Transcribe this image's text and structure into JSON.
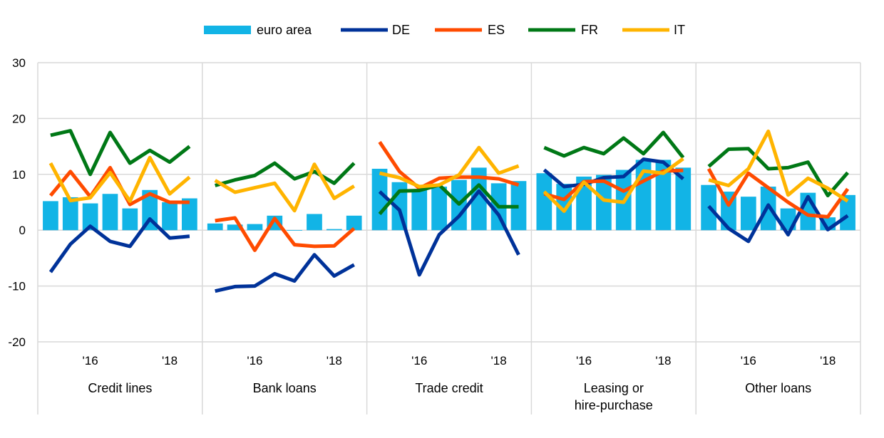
{
  "chart_data": {
    "type": "bar+line",
    "title": "",
    "xlabel": "",
    "ylabel": "",
    "ylim": [
      -20,
      30
    ],
    "yticks": [
      30,
      20,
      10,
      0,
      -10,
      -20
    ],
    "grid": true,
    "legend_position": "top-center",
    "legend": [
      {
        "name": "euro area",
        "kind": "bar",
        "color": "#12B4E6"
      },
      {
        "name": "DE",
        "kind": "line",
        "color": "#003299"
      },
      {
        "name": "ES",
        "kind": "line",
        "color": "#FF4B00"
      },
      {
        "name": "FR",
        "kind": "line",
        "color": "#007816"
      },
      {
        "name": "IT",
        "kind": "line",
        "color": "#FFB400"
      }
    ],
    "x_tick_labels": [
      "'16",
      "'18"
    ],
    "panels": [
      {
        "label": [
          "Credit lines"
        ],
        "euro_area": [
          5.2,
          5.9,
          4.8,
          6.5,
          3.9,
          7.2,
          5.0,
          5.7
        ],
        "DE": [
          -7.5,
          -2.5,
          0.7,
          -2.0,
          -2.9,
          2.0,
          -1.4,
          -1.1
        ],
        "ES": [
          6.2,
          10.5,
          6.0,
          11.2,
          4.6,
          6.5,
          5.0,
          5.0
        ],
        "FR": [
          17.0,
          17.8,
          10.0,
          17.5,
          12.0,
          14.3,
          12.2,
          15.0
        ],
        "IT": [
          12.0,
          5.3,
          5.8,
          10.3,
          5.2,
          13.0,
          6.5,
          9.5
        ]
      },
      {
        "label": [
          "Bank loans"
        ],
        "euro_area": [
          1.2,
          1.0,
          1.1,
          2.6,
          0.0,
          2.9,
          0.2,
          2.6
        ],
        "DE": [
          -10.9,
          -10.1,
          -10.0,
          -7.8,
          -9.1,
          -4.4,
          -8.2,
          -6.2
        ],
        "ES": [
          1.7,
          2.2,
          -3.6,
          2.1,
          -2.6,
          -2.9,
          -2.8,
          0.3
        ],
        "FR": [
          8.0,
          9.0,
          9.8,
          12.0,
          9.2,
          10.5,
          8.4,
          12.0
        ],
        "IT": [
          8.9,
          6.8,
          7.6,
          8.4,
          3.5,
          11.8,
          5.7,
          7.9
        ]
      },
      {
        "label": [
          "Trade credit"
        ],
        "euro_area": [
          11.0,
          8.6,
          7.3,
          7.8,
          9.0,
          11.2,
          8.4,
          8.8
        ],
        "DE": [
          6.9,
          3.6,
          -8.0,
          -0.8,
          2.5,
          7.0,
          2.7,
          -4.4
        ],
        "ES": [
          15.8,
          10.5,
          7.5,
          9.3,
          9.5,
          9.5,
          9.2,
          8.1
        ],
        "FR": [
          2.9,
          7.0,
          7.1,
          8.1,
          4.7,
          8.1,
          4.2,
          4.2
        ],
        "IT": [
          10.2,
          9.4,
          7.8,
          8.1,
          9.9,
          14.8,
          10.2,
          11.5
        ]
      },
      {
        "label": [
          "Leasing or",
          "hire-purchase"
        ],
        "euro_area": [
          10.2,
          8.3,
          9.6,
          9.9,
          10.8,
          12.6,
          12.6,
          11.2
        ],
        "DE": [
          10.8,
          7.8,
          8.2,
          9.4,
          9.6,
          12.7,
          12.2,
          9.2
        ],
        "ES": [
          6.5,
          5.5,
          8.7,
          8.8,
          7.0,
          8.8,
          10.6,
          10.7
        ],
        "FR": [
          14.8,
          13.3,
          14.8,
          13.7,
          16.5,
          13.7,
          17.5,
          13.0
        ],
        "IT": [
          6.9,
          3.4,
          8.6,
          5.4,
          5.0,
          10.6,
          10.2,
          12.8
        ]
      },
      {
        "label": [
          "Other loans"
        ],
        "euro_area": [
          8.1,
          6.9,
          6.0,
          7.8,
          3.9,
          6.7,
          2.3,
          6.3
        ],
        "DE": [
          4.3,
          0.3,
          -2.0,
          4.5,
          -0.8,
          6.0,
          0.1,
          2.6
        ],
        "ES": [
          11.0,
          4.5,
          10.2,
          7.6,
          5.0,
          2.7,
          2.4,
          7.4
        ],
        "FR": [
          11.4,
          14.5,
          14.6,
          11.0,
          11.2,
          12.2,
          6.2,
          10.3
        ],
        "IT": [
          9.0,
          8.0,
          11.0,
          17.7,
          6.3,
          9.3,
          7.5,
          5.2
        ]
      }
    ]
  }
}
